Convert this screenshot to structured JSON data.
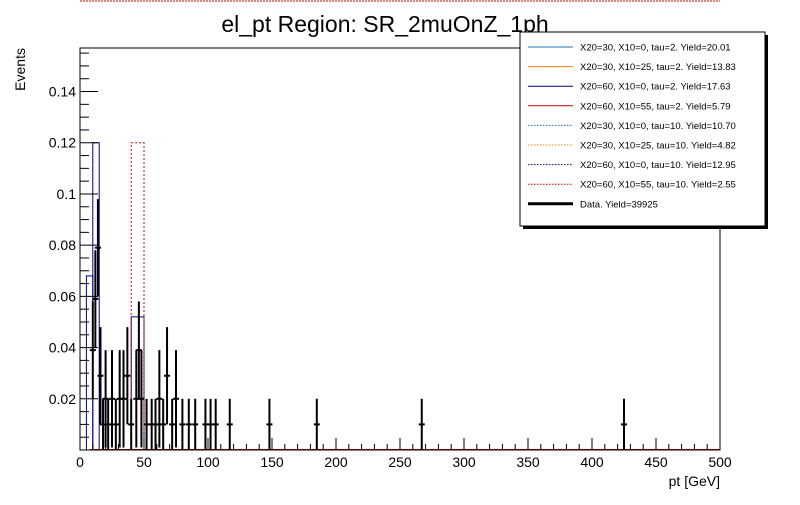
{
  "chart_data": {
    "type": "histogram",
    "title": "el_pt Region: SR_2muOnZ_1ph",
    "xlabel": "pt [GeV]",
    "ylabel": "Events",
    "xlim": [
      0,
      500
    ],
    "ylim": [
      0,
      0.157
    ],
    "x_ticks": [
      0,
      50,
      100,
      150,
      200,
      250,
      300,
      350,
      400,
      450,
      500
    ],
    "y_ticks": [
      0.02,
      0.04,
      0.06,
      0.08,
      0.1,
      0.12,
      0.14
    ],
    "x_tick_labels": [
      "0",
      "50",
      "100",
      "150",
      "200",
      "250",
      "300",
      "350",
      "400",
      "450",
      "500"
    ],
    "y_tick_labels": [
      "0.02",
      "0.04",
      "0.06",
      "0.08",
      "0.1",
      "0.12",
      "0.14"
    ],
    "legend_position": "top-right",
    "series": [
      {
        "name": "X20=30, X10=0, tau=2. Yield=20.01",
        "color": "#1f77b4",
        "style": "solid",
        "bins": []
      },
      {
        "name": "X20=30, X10=25, tau=2. Yield=13.83",
        "color": "#ff7f0e",
        "style": "solid",
        "bins": []
      },
      {
        "name": "X20=60, X10=0, tau=2. Yield=17.63",
        "color": "#000080",
        "style": "solid",
        "bins": [
          [
            5,
            10,
            0.068
          ],
          [
            10,
            15,
            0.12
          ],
          [
            40,
            50,
            0.052
          ]
        ]
      },
      {
        "name": "X20=60, X10=55, tau=2. Yield=5.79",
        "color": "#cc0000",
        "style": "solid",
        "bins": []
      },
      {
        "name": "X20=30, X10=0, tau=10. Yield=10.70",
        "color": "#1f77b4",
        "style": "dotted",
        "bins": []
      },
      {
        "name": "X20=30, X10=25, tau=10. Yield=4.82",
        "color": "#ff7f0e",
        "style": "dotted",
        "bins": []
      },
      {
        "name": "X20=60, X10=0, tau=10. Yield=12.95",
        "color": "#000080",
        "style": "dotted",
        "bins": []
      },
      {
        "name": "X20=60, X10=55, tau=10. Yield=2.55",
        "color": "#cc0000",
        "style": "dotted",
        "bins": [
          [
            40,
            50,
            0.12
          ]
        ]
      }
    ],
    "data_series": {
      "name": "Data. Yield=39925",
      "color": "#000000",
      "points": [
        {
          "x": 10,
          "y": 0.039,
          "err": 0.019
        },
        {
          "x": 12,
          "y": 0.059,
          "err": 0.019
        },
        {
          "x": 14,
          "y": 0.079,
          "err": 0.019
        },
        {
          "x": 16,
          "y": 0.029,
          "err": 0.019
        },
        {
          "x": 18,
          "y": 0.01,
          "err": 0.01
        },
        {
          "x": 20,
          "y": 0.02,
          "err": 0.019
        },
        {
          "x": 22,
          "y": 0.01,
          "err": 0.01
        },
        {
          "x": 25,
          "y": 0.02,
          "err": 0.019
        },
        {
          "x": 28,
          "y": 0.01,
          "err": 0.01
        },
        {
          "x": 31,
          "y": 0.02,
          "err": 0.019
        },
        {
          "x": 34,
          "y": 0.02,
          "err": 0.019
        },
        {
          "x": 37,
          "y": 0.029,
          "err": 0.019
        },
        {
          "x": 40,
          "y": 0.01,
          "err": 0.01
        },
        {
          "x": 44,
          "y": 0.02,
          "err": 0.019
        },
        {
          "x": 46,
          "y": 0.039,
          "err": 0.019
        },
        {
          "x": 48,
          "y": 0.02,
          "err": 0.019
        },
        {
          "x": 52,
          "y": 0.01,
          "err": 0.01
        },
        {
          "x": 56,
          "y": 0.01,
          "err": 0.01
        },
        {
          "x": 59,
          "y": 0.01,
          "err": 0.01
        },
        {
          "x": 62,
          "y": 0.02,
          "err": 0.019
        },
        {
          "x": 65,
          "y": 0.01,
          "err": 0.01
        },
        {
          "x": 68,
          "y": 0.029,
          "err": 0.019
        },
        {
          "x": 72,
          "y": 0.01,
          "err": 0.01
        },
        {
          "x": 75,
          "y": 0.02,
          "err": 0.019
        },
        {
          "x": 80,
          "y": 0.01,
          "err": 0.01
        },
        {
          "x": 85,
          "y": 0.01,
          "err": 0.01
        },
        {
          "x": 90,
          "y": 0.01,
          "err": 0.01
        },
        {
          "x": 98,
          "y": 0.01,
          "err": 0.01
        },
        {
          "x": 102,
          "y": 0.01,
          "err": 0.01
        },
        {
          "x": 106,
          "y": 0.01,
          "err": 0.01
        },
        {
          "x": 117,
          "y": 0.01,
          "err": 0.01
        },
        {
          "x": 148,
          "y": 0.01,
          "err": 0.01
        },
        {
          "x": 185,
          "y": 0.01,
          "err": 0.01
        },
        {
          "x": 267,
          "y": 0.01,
          "err": 0.01
        },
        {
          "x": 425,
          "y": 0.01,
          "err": 0.01
        }
      ]
    }
  }
}
